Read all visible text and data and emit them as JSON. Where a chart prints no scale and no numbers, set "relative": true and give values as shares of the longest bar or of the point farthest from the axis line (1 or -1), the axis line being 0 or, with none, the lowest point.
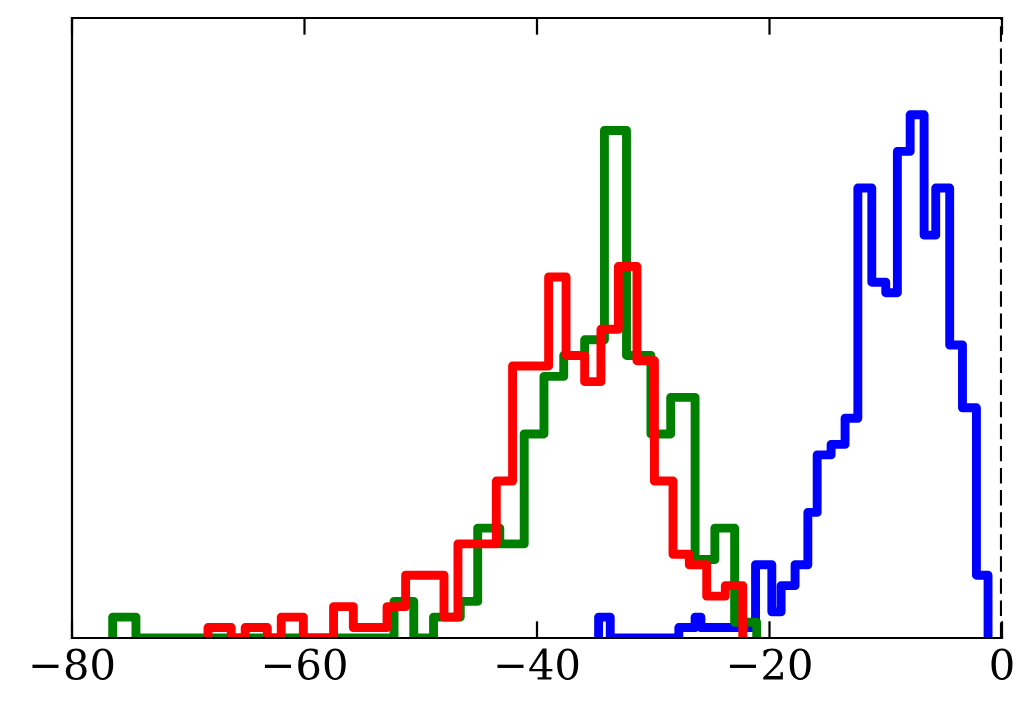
{
  "chart_data": {
    "type": "step",
    "relative": true,
    "tick_labels": "x",
    "grid": false,
    "legend": false,
    "marker": "none",
    "line_style": "solid",
    "xlim": [
      -80,
      0
    ],
    "xticks": [
      {
        "value": -80,
        "label": "−80"
      },
      {
        "value": -60,
        "label": "−60"
      },
      {
        "value": -40,
        "label": "−40"
      },
      {
        "value": -20,
        "label": "−20"
      },
      {
        "value": 0,
        "label": "0"
      }
    ],
    "ref_lines": [
      {
        "axis": "x",
        "value": 0,
        "color": "#000000",
        "line_style": "dashed"
      }
    ],
    "series": [
      {
        "color": "#0000ff",
        "x": [
          -34.7,
          -34.7,
          -33.7,
          -27.8,
          -26.4,
          -25.9,
          -23.1,
          -21.2,
          -19.8,
          -19.0,
          -17.8,
          -16.7,
          -15.9,
          -14.7,
          -13.5,
          -12.4,
          -11.2,
          -10.0,
          -9.0,
          -7.9,
          -6.7,
          -5.7,
          -4.5,
          -3.4,
          -2.2,
          -1.2
        ],
        "values": [
          0,
          0.04,
          0,
          0.02,
          0.04,
          0.02,
          0.02,
          0.14,
          0.05,
          0.1,
          0.14,
          0.24,
          0.35,
          0.37,
          0.42,
          0.86,
          0.68,
          0.66,
          0.93,
          1.0,
          0.77,
          0.86,
          0.56,
          0.44,
          0.12,
          0
        ]
      },
      {
        "color": "#008000",
        "x": [
          -76.5,
          -76.5,
          -74.5,
          -52.3,
          -50.6,
          -48.9,
          -46.6,
          -45.1,
          -43.2,
          -41.1,
          -39.4,
          -37.7,
          -35.9,
          -34.2,
          -32.3,
          -30.2,
          -28.5,
          -26.4,
          -24.7,
          -23.0,
          -21.1
        ],
        "values": [
          0,
          0.04,
          0,
          0.07,
          0,
          0.04,
          0.07,
          0.21,
          0.18,
          0.39,
          0.5,
          0.54,
          0.57,
          0.97,
          0.54,
          0.39,
          0.46,
          0.15,
          0.21,
          0.03,
          0
        ]
      },
      {
        "color": "#ff0000",
        "x": [
          -68.3,
          -68.3,
          -66.3,
          -65.1,
          -63.2,
          -62.0,
          -60.1,
          -57.5,
          -55.8,
          -52.9,
          -51.3,
          -48.0,
          -46.8,
          -43.5,
          -42.1,
          -39.0,
          -37.5,
          -35.9,
          -34.5,
          -33.0,
          -31.4,
          -29.9,
          -28.3,
          -26.9,
          -25.4,
          -23.8,
          -22.3
        ],
        "values": [
          0,
          0.02,
          0,
          0.02,
          0,
          0.04,
          0,
          0.06,
          0.02,
          0.06,
          0.12,
          0.04,
          0.18,
          0.3,
          0.52,
          0.69,
          0.54,
          0.49,
          0.59,
          0.71,
          0.53,
          0.3,
          0.16,
          0.14,
          0.08,
          0.1,
          0
        ]
      }
    ]
  }
}
